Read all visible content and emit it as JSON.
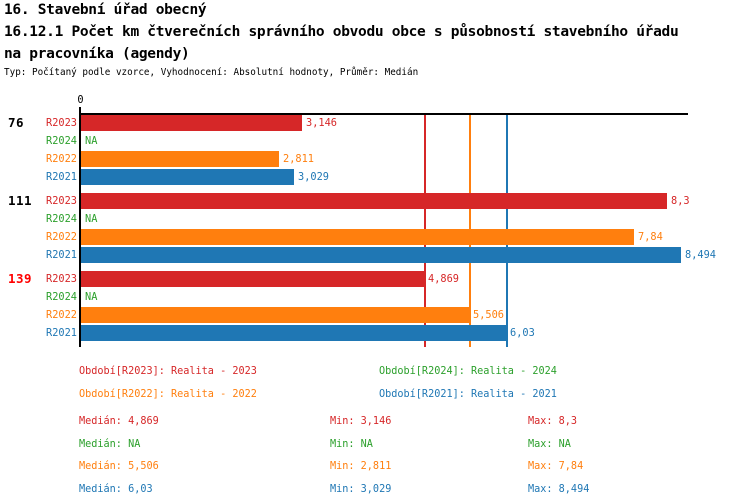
{
  "header": {
    "line1": "16. Stavební úřad obecný",
    "line2": "16.12.1 Počet km čtverečních správního obvodu obce s působností stavebního úřadu",
    "line3": "na pracovníka (agendy)",
    "subtitle": "Typ: Počítaný podle vzorce, Vyhodnocení: Absolutní hodnoty, Průměr: Medián"
  },
  "colors": {
    "R2023": "#d62728",
    "R2024": "#2ca02c",
    "R2022": "#ff7f0e",
    "R2021": "#1f77b4",
    "highlight": "#ff0000",
    "axis": "#000000",
    "background": "#ffffff"
  },
  "chart_data": {
    "type": "bar",
    "orientation": "horizontal",
    "title": "16.12.1 Počet km čtverečních správního obvodu obce s působností stavebního úřadu na pracovníka (agendy)",
    "axis_min": 0,
    "axis_max": 8.6,
    "tick_labels": [
      "0"
    ],
    "grid": false,
    "series_names": [
      "R2023",
      "R2024",
      "R2022",
      "R2021"
    ],
    "groups": [
      {
        "label": "76",
        "highlighted": false,
        "values": {
          "R2023": 3.146,
          "R2024": null,
          "R2022": 2.811,
          "R2021": 3.029
        },
        "display": {
          "R2023": "3,146",
          "R2024": "NA",
          "R2022": "2,811",
          "R2021": "3,029"
        }
      },
      {
        "label": "111",
        "highlighted": false,
        "values": {
          "R2023": 8.3,
          "R2024": null,
          "R2022": 7.84,
          "R2021": 8.494
        },
        "display": {
          "R2023": "8,3",
          "R2024": "NA",
          "R2022": "7,84",
          "R2021": "8,494"
        }
      },
      {
        "label": "139",
        "highlighted": true,
        "values": {
          "R2023": 4.869,
          "R2024": null,
          "R2022": 5.506,
          "R2021": 6.03
        },
        "display": {
          "R2023": "4,869",
          "R2024": "NA",
          "R2022": "5,506",
          "R2021": "6,03"
        }
      }
    ],
    "median_lines": [
      {
        "series": "R2023",
        "value": 4.869
      },
      {
        "series": "R2022",
        "value": 5.506
      },
      {
        "series": "R2021",
        "value": 6.03
      }
    ]
  },
  "legend": {
    "items": [
      {
        "series": "R2023",
        "label": "Období[R2023]: Realita - 2023"
      },
      {
        "series": "R2024",
        "label": "Období[R2024]: Realita - 2024"
      },
      {
        "series": "R2022",
        "label": "Období[R2022]: Realita - 2022"
      },
      {
        "series": "R2021",
        "label": "Období[R2021]: Realita - 2021"
      }
    ]
  },
  "stats": {
    "rows": [
      {
        "series": "R2023",
        "cells": [
          "Medián: 4,869",
          "Min: 3,146",
          "Max: 8,3"
        ]
      },
      {
        "series": "R2024",
        "cells": [
          "Medián: NA",
          "Min: NA",
          "Max: NA"
        ]
      },
      {
        "series": "R2022",
        "cells": [
          "Medián: 5,506",
          "Min: 2,811",
          "Max: 7,84"
        ]
      },
      {
        "series": "R2021",
        "cells": [
          "Medián: 6,03",
          "Min: 3,029",
          "Max: 8,494"
        ]
      }
    ]
  }
}
